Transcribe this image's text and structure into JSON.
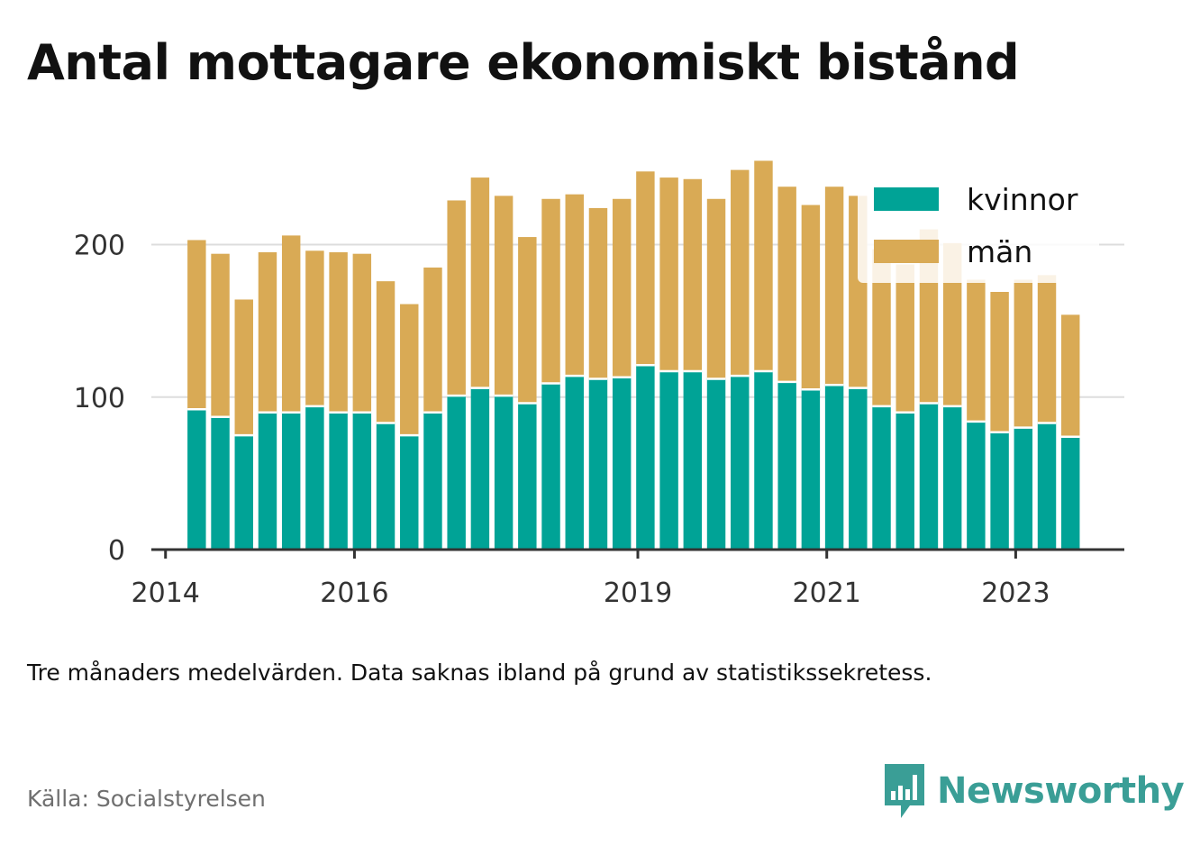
{
  "title": "Antal mottagare ekonomiskt bistånd",
  "note": "Tre månaders medelvärden. Data saknas ibland på grund av statistikssekretess.",
  "source": "Källa: Socialstyrelsen",
  "brand": {
    "name": "Newsworthy",
    "icon": "newsworthy-logo-icon",
    "color": "#3a9e96"
  },
  "chart_data": {
    "type": "bar",
    "stacked": true,
    "x_axis": {
      "type": "year",
      "range": [
        2013.85,
        2024.15
      ],
      "ticks": [
        2014,
        2016,
        2019,
        2021,
        2023
      ],
      "tick_labels": [
        "2014",
        "2016",
        "2019",
        "2021",
        "2023"
      ]
    },
    "y_axis": {
      "range": [
        0,
        260
      ],
      "ticks": [
        0,
        100,
        200
      ],
      "tick_labels": [
        "0",
        "100",
        "200"
      ],
      "gridlines": true
    },
    "legend": {
      "placement": "top-right",
      "entries": [
        "kvinnor",
        "män"
      ]
    },
    "x": [
      2014.33,
      2014.58,
      2014.83,
      2015.08,
      2015.33,
      2015.58,
      2015.83,
      2016.08,
      2016.33,
      2016.58,
      2016.83,
      2017.08,
      2017.33,
      2017.58,
      2017.83,
      2018.08,
      2018.33,
      2018.58,
      2018.83,
      2019.08,
      2019.33,
      2019.58,
      2019.83,
      2020.08,
      2020.33,
      2020.58,
      2020.83,
      2021.08,
      2021.33,
      2021.58,
      2021.83,
      2022.08,
      2022.33,
      2022.58,
      2022.83,
      2023.08,
      2023.33,
      2023.58
    ],
    "series": [
      {
        "name": "kvinnor",
        "color": "#00a396",
        "values": [
          92,
          87,
          75,
          90,
          90,
          94,
          90,
          90,
          83,
          75,
          90,
          101,
          106,
          101,
          96,
          109,
          114,
          112,
          113,
          121,
          117,
          117,
          112,
          114,
          117,
          110,
          105,
          108,
          106,
          94,
          90,
          96,
          94,
          84,
          77,
          80,
          83,
          74
        ]
      },
      {
        "name": "män",
        "color": "#d9aa55",
        "values": [
          111,
          107,
          89,
          105,
          116,
          102,
          105,
          104,
          93,
          86,
          95,
          128,
          138,
          131,
          109,
          121,
          119,
          112,
          117,
          127,
          127,
          126,
          118,
          135,
          138,
          128,
          121,
          130,
          126,
          103,
          97,
          114,
          107,
          93,
          92,
          97,
          97,
          80
        ]
      }
    ]
  }
}
